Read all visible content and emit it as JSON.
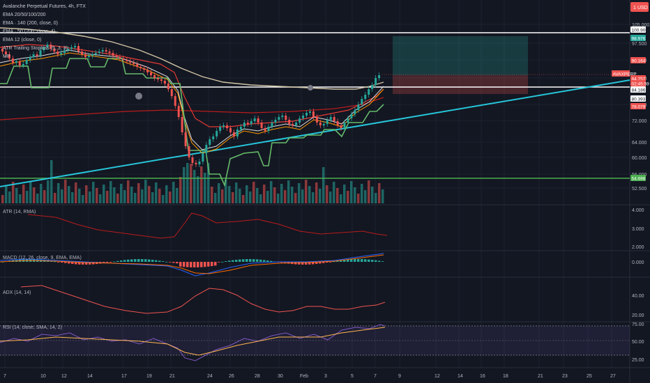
{
  "title": "Avalanche Perpetual Futures, 4h, FTX",
  "currency_badge": "1",
  "currency": "USD",
  "indicators": [
    "EMA 20/50/100/200",
    "EMA · 140 (200, close, 0)",
    "EMA · 50 (200, close, 4)",
    "EMA 12 (close, 0)",
    "ATR Trailing Stoploss (5, 3, 3)",
    "MP"
  ],
  "price_axis": {
    "labels": [
      "105.000",
      "97.500",
      "90.000",
      "84.000",
      "78.000",
      "72.000",
      "64.000",
      "60.000",
      "56.000",
      "52.500"
    ],
    "badges": [
      {
        "label": "100.905",
        "bg": "#ffffff",
        "fg": "#131722"
      },
      {
        "label": "98.976",
        "bg": "#26a69a",
        "fg": "#ffffff"
      },
      {
        "label": "90.164",
        "bg": "#ef5350",
        "fg": "#ffffff"
      },
      {
        "label": "AVAXPERP",
        "bg": "#ef5350",
        "fg": "#ffffff"
      },
      {
        "label": "84.757",
        "bg": "#ef5350",
        "fg": "#ffffff"
      },
      {
        "label": "02:45:59",
        "bg": "#ef5350",
        "fg": "#ffffff"
      },
      {
        "label": "84.186",
        "bg": "#ffffff",
        "fg": "#131722"
      },
      {
        "label": "80.393",
        "bg": "#ffffff",
        "fg": "#131722"
      },
      {
        "label": "78.079",
        "bg": "#ef5350",
        "fg": "#ffffff"
      },
      {
        "label": "54.698",
        "bg": "#4caf50",
        "fg": "#ffffff"
      }
    ]
  },
  "panes": {
    "atr": {
      "label": "ATR (14, RMA)",
      "axis": [
        "4.000",
        "3.000",
        "2.000"
      ]
    },
    "macd": {
      "label": "MACD (12, 26, close, 9, EMA, EMA)",
      "axis": [
        "0.000"
      ]
    },
    "adx": {
      "label": "ADX (14, 14)",
      "axis": [
        "40.00",
        "20.00"
      ]
    },
    "rsi": {
      "label": "RSI (14, close, SMA, 14, 2)",
      "axis": [
        "75.00",
        "50.00",
        "25.00"
      ]
    }
  },
  "time_axis": [
    "7",
    "10",
    "12",
    "14",
    "17",
    "19",
    "21",
    "24",
    "26",
    "28",
    "30",
    "Feb",
    "3",
    "5",
    "7",
    "9",
    "12",
    "14",
    "16",
    "18",
    "21",
    "23",
    "25",
    "27"
  ],
  "colors": {
    "background": "#131722",
    "up": "#26a69a",
    "down": "#ef5350",
    "trendline": "#26c6da",
    "support": "#4caf50",
    "ema_long": "#d1c4a5",
    "rsi": "#7e57c2"
  }
}
